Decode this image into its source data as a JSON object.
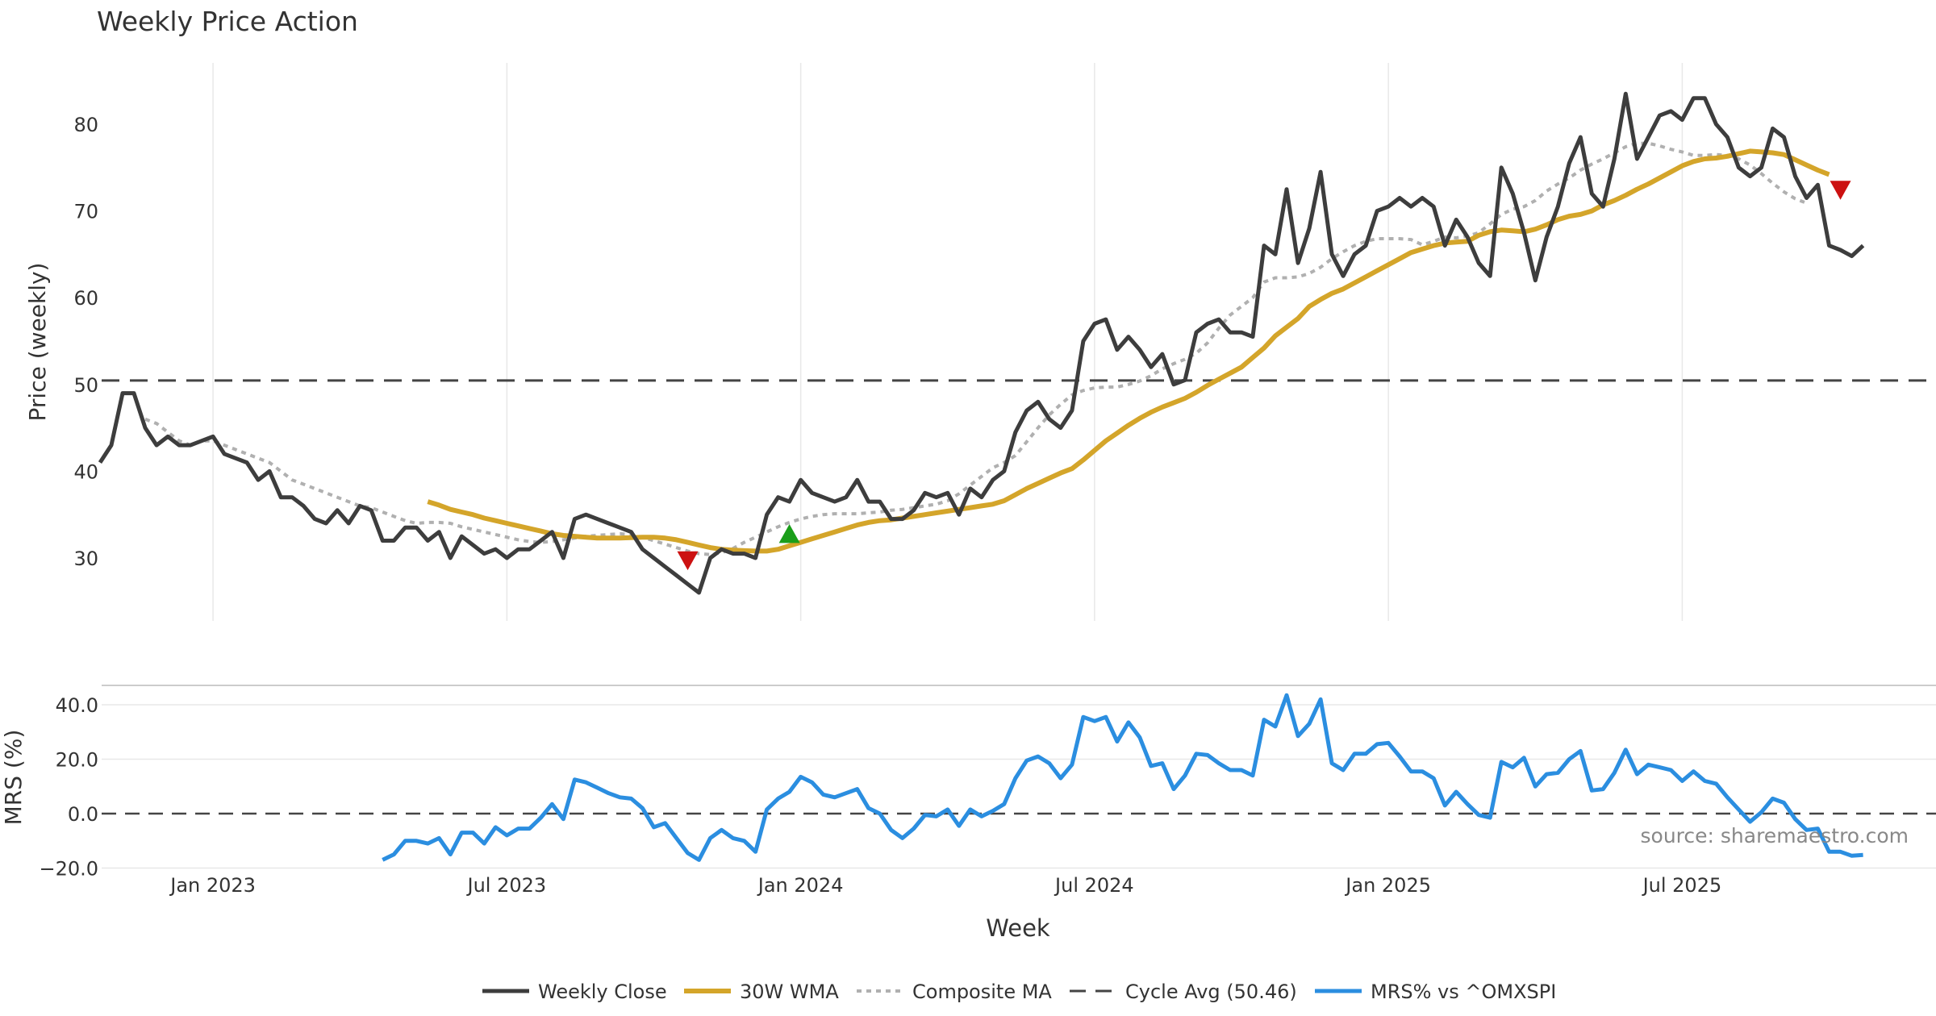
{
  "chart_data": {
    "type": "line",
    "title": "Weekly Price Action",
    "source_note": "source: sharemaestro.com",
    "xlabel": "Week",
    "x_tick_labels": [
      "Jan 2023",
      "Jul 2023",
      "Jan 2024",
      "Jul 2024",
      "Jan 2025",
      "Jul 2025"
    ],
    "x_tick_weeks": [
      10,
      36,
      62,
      88,
      114,
      140
    ],
    "price_panel": {
      "ylabel": "Price (weekly)",
      "ylim": [
        22,
        87
      ],
      "y_ticks": [
        30,
        40,
        50,
        60,
        70,
        80
      ],
      "cycle_avg": 50.46
    },
    "mrs_panel": {
      "ylabel": "MRS (%)",
      "ylim": [
        -22,
        46
      ],
      "y_ticks": [
        40.0,
        20.0,
        0.0,
        -20.0
      ],
      "y_tick_labels": [
        "40.0",
        "20.0",
        "0.0",
        "−20.0"
      ]
    },
    "legend": {
      "close": "Weekly Close",
      "wma": "30W WMA",
      "composite": "Composite MA",
      "cycle": "Cycle Avg (50.46)",
      "mrs": "MRS% vs ^OMXSPI"
    },
    "colors": {
      "close": "#3d3d3d",
      "wma": "#d4a52a",
      "composite": "#b0b0b0",
      "cycle": "#444444",
      "mrs": "#2b8ee0",
      "buy_signal": "#1a9e1a",
      "sell_signal": "#cc1111",
      "grid": "#e8e8e8"
    },
    "series": [
      {
        "name": "Weekly Close",
        "start_week": 0,
        "values": [
          41,
          43,
          49,
          49,
          45,
          43,
          44,
          43,
          43,
          43.5,
          44,
          42,
          41.5,
          41,
          39,
          40,
          37,
          37,
          36,
          34.5,
          34,
          35.5,
          34,
          36,
          35.5,
          32,
          32,
          33.5,
          33.5,
          32,
          33,
          30,
          32.5,
          31.5,
          30.5,
          31,
          30,
          31,
          31,
          32,
          33,
          30,
          34.5,
          35,
          34.5,
          34,
          33.5,
          33,
          31,
          30,
          29,
          28,
          27,
          26,
          30,
          31,
          30.5,
          30.5,
          30,
          35,
          37,
          36.5,
          39,
          37.5,
          37,
          36.5,
          37,
          39,
          36.5,
          36.5,
          34.5,
          34.5,
          35.5,
          37.5,
          37,
          37.5,
          35,
          38,
          37,
          39,
          40,
          44.5,
          47,
          48,
          46,
          45,
          47,
          55,
          57,
          57.5,
          54,
          55.5,
          54,
          52,
          53.5,
          50,
          50.5,
          56,
          57,
          57.5,
          56,
          56,
          55.5,
          66,
          65,
          72.5,
          64,
          68,
          74.5,
          65,
          62.5,
          65,
          66,
          70,
          70.5,
          71.5,
          70.5,
          71.5,
          70.5,
          66,
          69,
          67,
          64,
          62.5,
          75,
          72,
          67.5,
          62,
          67,
          70.5,
          75.5,
          78.5,
          72,
          70.5,
          76,
          83.5,
          76,
          78.5,
          81,
          81.5,
          80.5,
          83,
          83,
          80,
          78.5,
          75,
          74,
          75,
          79.5,
          78.5,
          74,
          71.5,
          73,
          66,
          65.5,
          64.8,
          66
        ]
      },
      {
        "name": "30W WMA",
        "start_week": 29,
        "values": [
          36.5,
          36.1,
          35.6,
          35.3,
          35,
          34.6,
          34.3,
          34,
          33.7,
          33.4,
          33.1,
          32.8,
          32.6,
          32.5,
          32.4,
          32.3,
          32.3,
          32.3,
          32.35,
          32.4,
          32.4,
          32.3,
          32.1,
          31.8,
          31.5,
          31.2,
          31,
          30.9,
          30.85,
          30.8,
          30.8,
          31,
          31.4,
          31.8,
          32.2,
          32.6,
          33,
          33.4,
          33.8,
          34.1,
          34.3,
          34.4,
          34.6,
          34.8,
          35,
          35.2,
          35.4,
          35.6,
          35.8,
          36,
          36.2,
          36.6,
          37.3,
          38,
          38.6,
          39.2,
          39.8,
          40.3,
          41.3,
          42.4,
          43.5,
          44.4,
          45.3,
          46.1,
          46.8,
          47.4,
          47.9,
          48.4,
          49.1,
          49.9,
          50.6,
          51.3,
          52,
          53.1,
          54.2,
          55.6,
          56.6,
          57.6,
          59,
          59.8,
          60.5,
          61,
          61.7,
          62.4,
          63.1,
          63.8,
          64.5,
          65.2,
          65.6,
          66,
          66.3,
          66.4,
          66.5,
          67.2,
          67.6,
          67.8,
          67.7,
          67.6,
          67.9,
          68.4,
          69,
          69.4,
          69.6,
          70,
          70.7,
          71.2,
          71.8,
          72.5,
          73.1,
          73.8,
          74.5,
          75.2,
          75.7,
          76,
          76.1,
          76.3,
          76.6,
          76.9,
          76.8,
          76.7,
          76.5,
          75.9,
          75.3,
          74.7,
          74.2
        ]
      },
      {
        "name": "Composite MA",
        "start_week": 4,
        "values": [
          46,
          45.5,
          44.5,
          43.5,
          43,
          43.5,
          43.5,
          43,
          42.5,
          42,
          41.5,
          41,
          40,
          39,
          38.5,
          38,
          37.5,
          37,
          36.5,
          36,
          35.8,
          35.3,
          34.8,
          34.3,
          34,
          34.1,
          34.1,
          34,
          33.6,
          33.3,
          33,
          32.7,
          32.4,
          32.1,
          31.9,
          31.8,
          31.9,
          32.1,
          32.3,
          32.5,
          32.6,
          32.7,
          32.8,
          32.7,
          32.4,
          32,
          31.6,
          31.2,
          30.8,
          30.5,
          30.4,
          30.6,
          31.1,
          31.8,
          32.4,
          33,
          33.6,
          34.1,
          34.5,
          34.8,
          35,
          35.1,
          35.1,
          35.1,
          35.2,
          35.3,
          35.5,
          35.6,
          35.8,
          36,
          36.2,
          36.6,
          37.4,
          38.4,
          39.4,
          40.4,
          41,
          41.8,
          43.4,
          45,
          46.5,
          47.7,
          48.8,
          49.3,
          49.6,
          49.7,
          49.7,
          50,
          50.4,
          51,
          51.8,
          52.4,
          52.9,
          53.6,
          54.8,
          56.5,
          58,
          59,
          60,
          61.8,
          62.3,
          62.3,
          62.4,
          62.8,
          63.5,
          64.5,
          65.3,
          66,
          66.5,
          66.8,
          66.8,
          66.8,
          66.7,
          66.1,
          66.5,
          67,
          66.9,
          67.1,
          67.5,
          68.5,
          69.6,
          70.2,
          70.5,
          71.2,
          72.3,
          73.1,
          73.8,
          74.7,
          75.4,
          76,
          76.7,
          77.4,
          77.8,
          77.8,
          77.5,
          77.1,
          76.8,
          76.4,
          76.4,
          76.5,
          76.4,
          76,
          75.3,
          74.3,
          73.2,
          72.2,
          71.4,
          70.9
        ]
      },
      {
        "name": "MRS% vs ^OMXSPI",
        "start_week": 25,
        "values": [
          -17,
          -15,
          -10,
          -10,
          -11,
          -9,
          -15,
          -7,
          -7,
          -11,
          -5,
          -8,
          -5.5,
          -5.5,
          -1.5,
          3.5,
          -2,
          12.5,
          11.5,
          9.5,
          7.5,
          6,
          5.5,
          2,
          -5,
          -3.5,
          -9,
          -14.5,
          -17,
          -9,
          -6,
          -9,
          -10,
          -14,
          1.5,
          5.5,
          8,
          13.5,
          11.5,
          7,
          6,
          7.5,
          9,
          2,
          0,
          -6,
          -9,
          -5.5,
          -0.5,
          -1,
          1.5,
          -4.5,
          1.5,
          -1,
          1,
          3.5,
          13,
          19.5,
          21,
          18.5,
          13,
          18,
          35.5,
          34,
          35.5,
          26.5,
          33.5,
          28,
          17.5,
          18.5,
          9,
          14,
          22,
          21.5,
          18.5,
          16,
          16,
          14,
          34.5,
          32,
          43.5,
          28.5,
          33,
          42,
          18.5,
          16,
          22,
          22,
          25.5,
          26,
          21,
          15.5,
          15.5,
          13,
          3,
          8,
          3.5,
          -0.5,
          -1.5,
          19,
          17,
          20.5,
          10,
          14.5,
          15,
          20,
          23,
          8.5,
          9,
          15,
          23.5,
          14.5,
          18,
          17,
          16,
          12,
          15.5,
          12,
          11,
          6,
          1.5,
          -3,
          0.5,
          5.5,
          4,
          -2,
          -6,
          -5.5,
          -14,
          -14,
          -15.5,
          -15.2
        ]
      }
    ],
    "signals": [
      {
        "type": "sell",
        "week": 52,
        "value": 29.8
      },
      {
        "type": "buy",
        "week": 61,
        "value": 32.7
      },
      {
        "type": "sell",
        "week": 154,
        "value": 72.5
      }
    ]
  }
}
